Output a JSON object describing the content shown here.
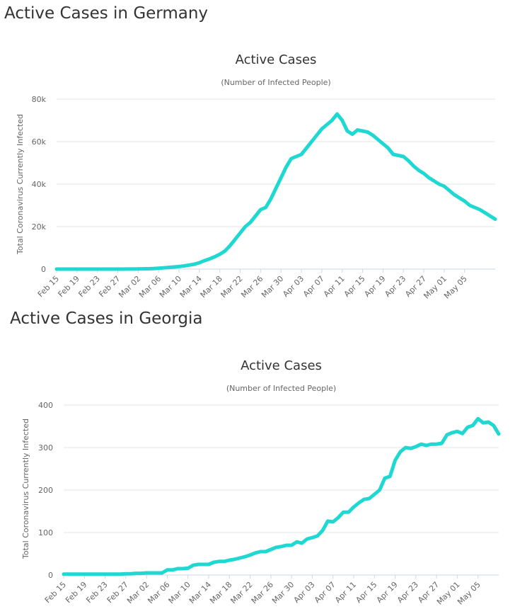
{
  "chart_data": [
    {
      "type": "line",
      "heading": "Active Cases in Germany",
      "title": "Active Cases",
      "subtitle": "(Number of Infected People)",
      "ylabel": "Total Coronavirus Currently Infected",
      "ylim": [
        0,
        80000
      ],
      "yticks": [
        0,
        20000,
        40000,
        60000,
        80000
      ],
      "ytick_labels": [
        "0",
        "20k",
        "40k",
        "60k",
        "80k"
      ],
      "x_start": "Feb 15",
      "x_end": "May 07",
      "xtick_labels": [
        "Feb 15",
        "Feb 19",
        "Feb 23",
        "Feb 27",
        "Mar 02",
        "Mar 06",
        "Mar 10",
        "Mar 14",
        "Mar 18",
        "Mar 22",
        "Mar 26",
        "Mar 30",
        "Apr 03",
        "Apr 07",
        "Apr 11",
        "Apr 15",
        "Apr 19",
        "Apr 23",
        "Apr 27",
        "May 01",
        "May 05"
      ],
      "grid": true,
      "color": "#1fd8d2",
      "series": [
        {
          "values": [
            16,
            16,
            16,
            16,
            16,
            16,
            16,
            16,
            16,
            16,
            16,
            16,
            16,
            16,
            30,
            50,
            90,
            130,
            180,
            250,
            400,
            600,
            800,
            1000,
            1200,
            1500,
            1900,
            2300,
            3000,
            4000,
            4800,
            5800,
            7000,
            8500,
            11000,
            14000,
            17000,
            20000,
            22000,
            25000,
            28000,
            29000,
            33000,
            38000,
            43000,
            48000,
            52000,
            53000,
            54000,
            57000,
            60000,
            63000,
            66000,
            68000,
            70000,
            73000,
            70000,
            65000,
            63500,
            65500,
            65000,
            64500,
            63000,
            61000,
            59000,
            57000,
            54000,
            53500,
            53000,
            51000,
            48500,
            46500,
            45000,
            43000,
            41500,
            40000,
            39000,
            37000,
            35000,
            33500,
            32000,
            30000,
            29000,
            28000,
            26500,
            25000,
            23500
          ]
        }
      ]
    },
    {
      "type": "line",
      "heading": "Active Cases in Georgia",
      "title": "Active Cases",
      "subtitle": "(Number of Infected People)",
      "ylabel": "Total Coronavirus Currently Infected",
      "ylim": [
        0,
        400
      ],
      "yticks": [
        0,
        100,
        200,
        300,
        400
      ],
      "ytick_labels": [
        "0",
        "100",
        "200",
        "300",
        "400"
      ],
      "x_start": "Feb 15",
      "x_end": "May 07",
      "xtick_labels": [
        "Feb 15",
        "Feb 19",
        "Feb 23",
        "Feb 27",
        "Mar 02",
        "Mar 06",
        "Mar 10",
        "Mar 14",
        "Mar 18",
        "Mar 22",
        "Mar 26",
        "Mar 30",
        "Apr 03",
        "Apr 07",
        "Apr 11",
        "Apr 15",
        "Apr 19",
        "Apr 23",
        "Apr 27",
        "May 01",
        "May 05"
      ],
      "grid": true,
      "color": "#1fd8d2",
      "series": [
        {
          "values": [
            2,
            2,
            2,
            2,
            2,
            2,
            2,
            2,
            2,
            2,
            2,
            2,
            3,
            3,
            4,
            4,
            5,
            5,
            5,
            5,
            12,
            12,
            15,
            15,
            16,
            23,
            25,
            25,
            25,
            30,
            32,
            32,
            35,
            37,
            40,
            43,
            47,
            52,
            55,
            55,
            60,
            65,
            67,
            70,
            70,
            78,
            75,
            85,
            88,
            92,
            105,
            127,
            125,
            135,
            148,
            148,
            160,
            170,
            178,
            180,
            190,
            200,
            228,
            232,
            270,
            290,
            300,
            298,
            302,
            308,
            305,
            308,
            308,
            310,
            330,
            335,
            338,
            333,
            348,
            352,
            368,
            358,
            360,
            352,
            332
          ]
        }
      ]
    }
  ]
}
